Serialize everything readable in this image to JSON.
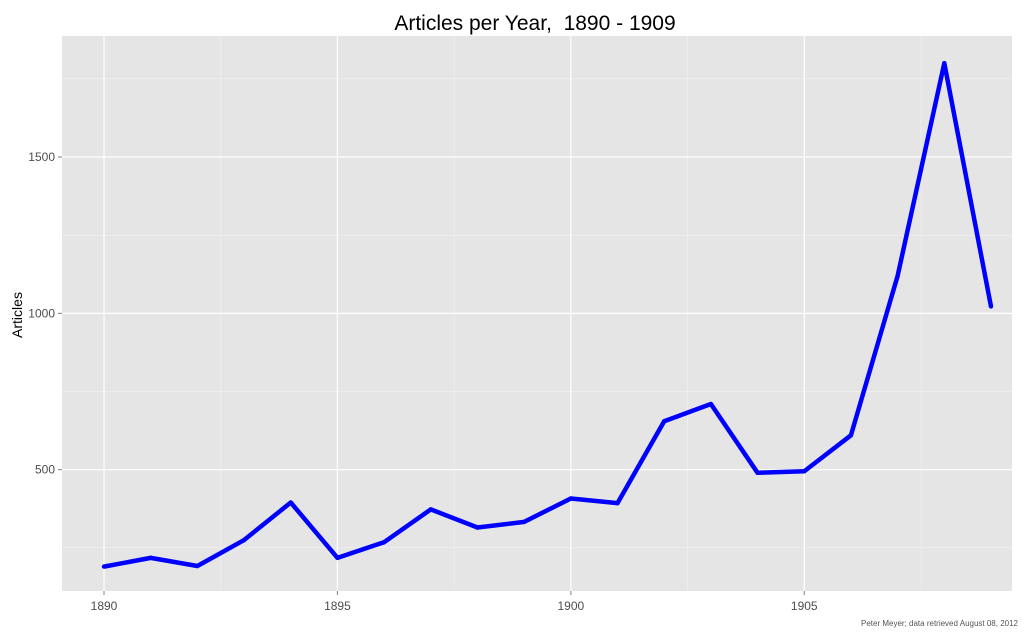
{
  "chart_data": {
    "type": "line",
    "title": "Articles per Year,  1890 - 1909",
    "xlabel": "",
    "ylabel": "Articles",
    "caption": "Peter Meyer; data retrieved August 08, 2012",
    "x": [
      1890,
      1891,
      1892,
      1893,
      1894,
      1895,
      1896,
      1897,
      1898,
      1899,
      1900,
      1901,
      1902,
      1903,
      1904,
      1905,
      1906,
      1907,
      1908,
      1909
    ],
    "series": [
      {
        "name": "",
        "color": "#0000ff",
        "values": [
          190,
          218,
          192,
          275,
          395,
          218,
          268,
          373,
          315,
          333,
          408,
          393,
          655,
          710,
          490,
          495,
          610,
          1120,
          1800,
          1022
        ]
      }
    ],
    "xticks": [
      1890,
      1895,
      1900,
      1905
    ],
    "yticks": [
      500,
      1000,
      1500
    ],
    "xlim": [
      1889.1,
      1909.45
    ],
    "ylim": [
      112,
      1887
    ],
    "grid": true,
    "legend": "none",
    "colors": {
      "panel": "#e5e5e5",
      "grid": "#ffffff",
      "line": "#0000ff"
    }
  }
}
